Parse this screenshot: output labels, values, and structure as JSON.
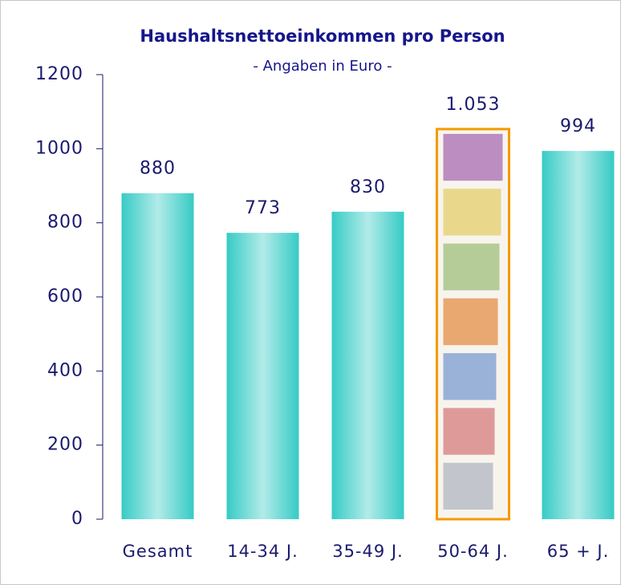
{
  "chart_data": {
    "type": "bar",
    "title": "Haushaltsnettoeinkommen pro Person",
    "subtitle": "- Angaben in Euro -",
    "categories": [
      "Gesamt",
      "14-34 J.",
      "35-49 J.",
      "50-64 J.",
      "65 + J."
    ],
    "values": [
      880,
      773,
      830,
      1053,
      994
    ],
    "value_labels": [
      "880",
      "773",
      "830",
      "1.053",
      "994"
    ],
    "color": "#3ecfc9",
    "highlight_index": 3,
    "highlight_color": "#f59a00",
    "ylim": [
      0,
      1200
    ],
    "yticks": [
      0,
      200,
      400,
      600,
      800,
      1000,
      1200
    ],
    "grid": false
  }
}
